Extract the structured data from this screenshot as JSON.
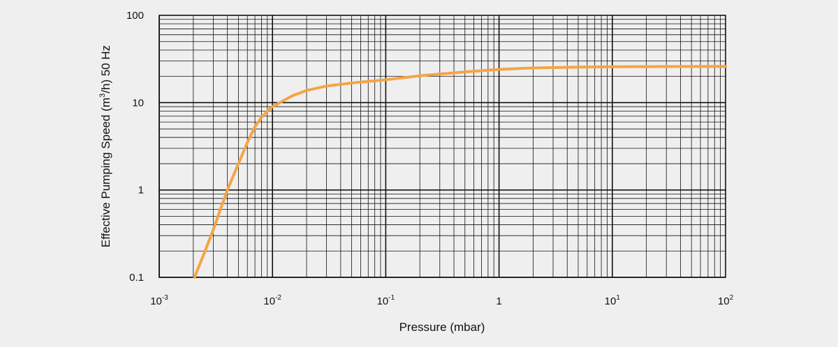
{
  "chart_data": {
    "type": "line",
    "title": "",
    "xlabel": "Pressure (mbar)",
    "ylabel_parts": {
      "prefix": "Effective Pumping Speed (m",
      "superscript": "3",
      "suffix": "/h) 50 Hz"
    },
    "x_scale": "log",
    "y_scale": "log",
    "xlim": [
      0.001,
      100
    ],
    "ylim": [
      0.1,
      100
    ],
    "x_ticks": [
      {
        "value": 0.001,
        "base": "10",
        "exp": "-3"
      },
      {
        "value": 0.01,
        "base": "10",
        "exp": "-2"
      },
      {
        "value": 0.1,
        "base": "10",
        "exp": "-1"
      },
      {
        "value": 1,
        "base": "1",
        "exp": ""
      },
      {
        "value": 10,
        "base": "10",
        "exp": "1"
      },
      {
        "value": 100,
        "base": "10",
        "exp": "2"
      }
    ],
    "y_ticks": [
      {
        "value": 0.1,
        "label": "0.1"
      },
      {
        "value": 1,
        "label": "1"
      },
      {
        "value": 10,
        "label": "10"
      },
      {
        "value": 100,
        "label": "100"
      }
    ],
    "grid": true,
    "series": [
      {
        "name": "Effective Pumping Speed",
        "color": "#f5a445",
        "points": [
          [
            0.00205,
            0.1
          ],
          [
            0.0025,
            0.19
          ],
          [
            0.003,
            0.35
          ],
          [
            0.0035,
            0.62
          ],
          [
            0.004,
            1.0
          ],
          [
            0.005,
            2.0
          ],
          [
            0.006,
            3.5
          ],
          [
            0.007,
            5.3
          ],
          [
            0.008,
            6.8
          ],
          [
            0.009,
            8.0
          ],
          [
            0.01,
            9.0
          ],
          [
            0.015,
            12.0
          ],
          [
            0.02,
            13.8
          ],
          [
            0.03,
            15.5
          ],
          [
            0.05,
            16.8
          ],
          [
            0.1,
            18.3
          ],
          [
            0.2,
            20.3
          ],
          [
            0.5,
            22.5
          ],
          [
            1,
            24.0
          ],
          [
            2,
            25.0
          ],
          [
            5,
            25.5
          ],
          [
            10,
            25.8
          ],
          [
            30,
            25.9
          ],
          [
            100,
            26.0
          ]
        ]
      }
    ]
  }
}
